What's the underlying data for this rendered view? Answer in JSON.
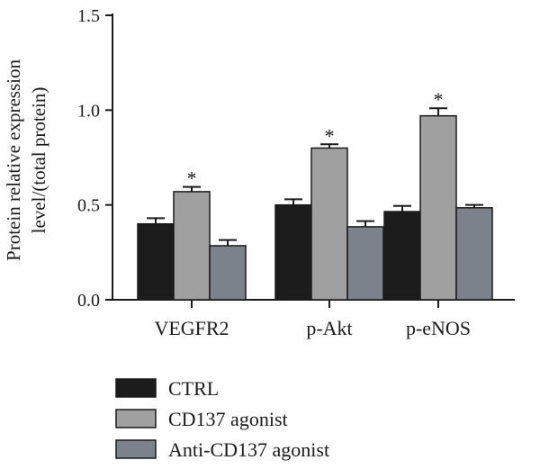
{
  "chart_data": {
    "type": "bar",
    "categories": [
      "VEGFR2",
      "p-Akt",
      "p-eNOS"
    ],
    "series": [
      {
        "name": "CTRL",
        "values": [
          0.4,
          0.5,
          0.465
        ],
        "errors": [
          0.03,
          0.03,
          0.03
        ],
        "color": "#1c1c1c"
      },
      {
        "name": "CD137 agonist",
        "values": [
          0.57,
          0.8,
          0.97
        ],
        "errors": [
          0.025,
          0.02,
          0.04
        ],
        "color": "#a0a0a0"
      },
      {
        "name": "Anti-CD137 agonist",
        "values": [
          0.285,
          0.385,
          0.485
        ],
        "errors": [
          0.03,
          0.03,
          0.015
        ],
        "color": "#7c828b"
      }
    ],
    "significance": [
      {
        "category": "VEGFR2",
        "series": "CD137 agonist",
        "mark": "*"
      },
      {
        "category": "p-Akt",
        "series": "CD137 agonist",
        "mark": "*"
      },
      {
        "category": "p-eNOS",
        "series": "CD137 agonist",
        "mark": "*"
      }
    ],
    "ylabel_line1": "Protein relative expression",
    "ylabel_line2": "level/(total protein)",
    "ylim": [
      0,
      1.5
    ],
    "yticks": [
      0.0,
      0.5,
      1.0,
      1.5
    ],
    "ytick_labels": [
      "0.0",
      "0.5",
      "1.0",
      "1.5"
    ],
    "legend_position": "bottom-left"
  }
}
